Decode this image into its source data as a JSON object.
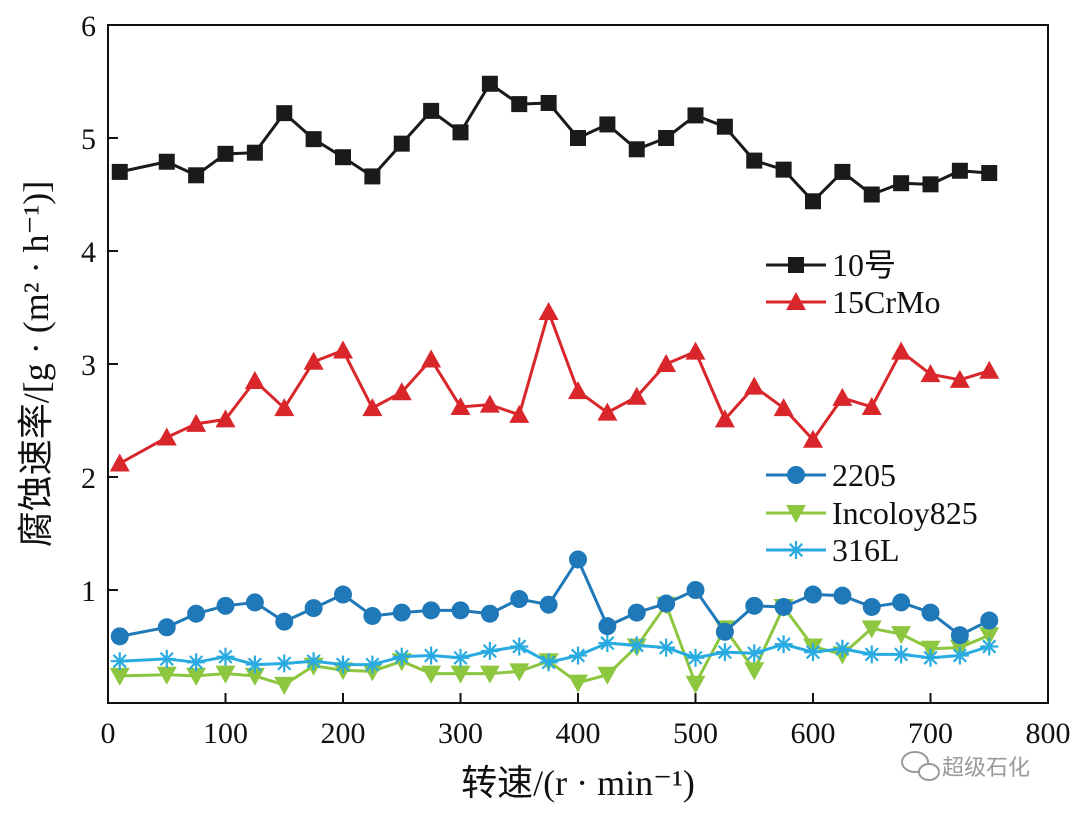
{
  "chart_data": {
    "type": "line",
    "xlabel": "转速/(r · min⁻¹)",
    "ylabel": "腐蚀速率/[g · (m² · h⁻¹)]",
    "xlim": [
      0,
      800
    ],
    "ylim": [
      0,
      6
    ],
    "xticks": [
      0,
      100,
      200,
      300,
      400,
      500,
      600,
      700,
      800
    ],
    "yticks": [
      1,
      2,
      3,
      4,
      5,
      6
    ],
    "grid": false,
    "legend_placement": "right",
    "x": [
      10,
      50,
      75,
      100,
      125,
      150,
      175,
      200,
      225,
      250,
      275,
      300,
      325,
      350,
      375,
      400,
      425,
      450,
      475,
      500,
      525,
      550,
      575,
      600,
      625,
      650,
      675,
      700,
      725,
      750
    ],
    "series": [
      {
        "name": "10号",
        "color": "#1a1a1a",
        "marker": "square",
        "values": [
          4.7,
          4.79,
          4.67,
          4.86,
          4.87,
          5.22,
          4.99,
          4.83,
          4.66,
          4.95,
          5.24,
          5.05,
          5.48,
          5.3,
          5.31,
          5.0,
          5.12,
          4.9,
          5.0,
          5.2,
          5.1,
          4.8,
          4.72,
          4.44,
          4.7,
          4.5,
          4.6,
          4.59,
          4.71,
          4.69
        ]
      },
      {
        "name": "15CrMo",
        "color": "#d9262b",
        "marker": "triangle-up",
        "values": [
          2.12,
          2.35,
          2.47,
          2.51,
          2.85,
          2.61,
          3.02,
          3.12,
          2.61,
          2.75,
          3.04,
          2.62,
          2.64,
          2.55,
          3.46,
          2.76,
          2.57,
          2.71,
          3.0,
          3.11,
          2.51,
          2.8,
          2.61,
          2.33,
          2.7,
          2.62,
          3.11,
          2.91,
          2.86,
          2.94
        ]
      },
      {
        "name": "2205",
        "color": "#1f78b7",
        "marker": "circle",
        "values": [
          0.59,
          0.67,
          0.79,
          0.86,
          0.89,
          0.72,
          0.84,
          0.96,
          0.77,
          0.8,
          0.82,
          0.82,
          0.79,
          0.92,
          0.87,
          1.27,
          0.68,
          0.8,
          0.88,
          1.0,
          0.63,
          0.86,
          0.85,
          0.96,
          0.95,
          0.85,
          0.89,
          0.8,
          0.6,
          0.73
        ]
      },
      {
        "name": "Incoloy825",
        "color": "#8dc63f",
        "marker": "triangle-down",
        "values": [
          0.24,
          0.25,
          0.24,
          0.26,
          0.24,
          0.16,
          0.33,
          0.29,
          0.28,
          0.37,
          0.26,
          0.26,
          0.26,
          0.28,
          0.37,
          0.18,
          0.25,
          0.5,
          0.87,
          0.17,
          0.66,
          0.29,
          0.85,
          0.5,
          0.43,
          0.66,
          0.61,
          0.48,
          0.49,
          0.6
        ]
      },
      {
        "name": "316L",
        "color": "#29abe2",
        "marker": "asterisk",
        "values": [
          0.37,
          0.39,
          0.36,
          0.41,
          0.34,
          0.35,
          0.37,
          0.34,
          0.34,
          0.41,
          0.42,
          0.4,
          0.46,
          0.5,
          0.36,
          0.42,
          0.53,
          0.51,
          0.49,
          0.4,
          0.45,
          0.44,
          0.52,
          0.45,
          0.48,
          0.43,
          0.43,
          0.4,
          0.42,
          0.5
        ]
      }
    ]
  },
  "watermark": {
    "text": "超级石化",
    "icon": "wechat-icon"
  }
}
